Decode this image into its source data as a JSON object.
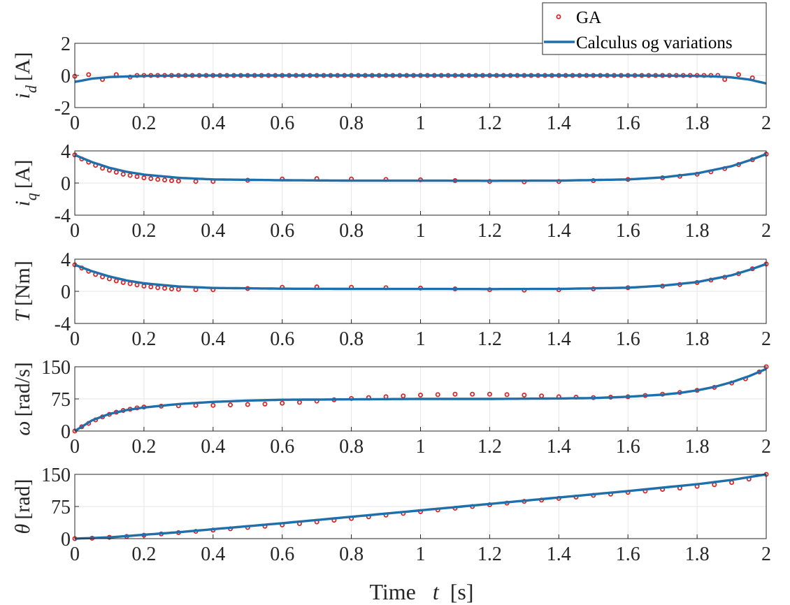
{
  "chart_data": [
    {
      "type": "line",
      "ylabel_sym": "i",
      "ylabel_sub": "d",
      "ylabel_unit": "[A]",
      "ylim": [
        -2,
        2
      ],
      "yticks": [
        -2,
        0,
        2
      ],
      "ytick_labels": [
        "-2",
        "0",
        "2"
      ],
      "xlim": [
        0,
        2
      ],
      "xticks": [
        0,
        0.2,
        0.4,
        0.6,
        0.8,
        1,
        1.2,
        1.4,
        1.6,
        1.8,
        2
      ],
      "xtick_labels": [
        "0",
        "0.2",
        "0.4",
        "0.6",
        "0.8",
        "1",
        "1.2",
        "1.4",
        "1.6",
        "1.8",
        "2"
      ],
      "series": [
        {
          "name": "Calculus og variations",
          "kind": "line",
          "x": [
            0,
            0.05,
            0.1,
            0.2,
            0.3,
            0.5,
            1.0,
            1.5,
            1.7,
            1.8,
            1.85,
            1.9,
            1.95,
            2.0
          ],
          "y": [
            -0.4,
            -0.2,
            -0.1,
            -0.03,
            -0.01,
            0,
            0,
            0,
            -0.01,
            -0.03,
            -0.06,
            -0.12,
            -0.25,
            -0.5
          ]
        },
        {
          "name": "GA",
          "kind": "markers",
          "x": [
            0,
            0.04,
            0.08,
            0.12,
            0.16,
            1.88,
            1.92,
            1.96
          ],
          "y": [
            -0.05,
            0.05,
            -0.25,
            0.05,
            -0.1,
            -0.25,
            0.05,
            -0.15
          ],
          "fill_y": 0,
          "fill_step": 0.02
        }
      ]
    },
    {
      "type": "line",
      "ylabel_sym": "i",
      "ylabel_sub": "q",
      "ylabel_unit": "[A]",
      "ylim": [
        -4,
        4
      ],
      "yticks": [
        -4,
        0,
        4
      ],
      "ytick_labels": [
        "-4",
        "0",
        "4"
      ],
      "xlim": [
        0,
        2
      ],
      "xticks": [
        0,
        0.2,
        0.4,
        0.6,
        0.8,
        1,
        1.2,
        1.4,
        1.6,
        1.8,
        2
      ],
      "xtick_labels": [
        "0",
        "0.2",
        "0.4",
        "0.6",
        "0.8",
        "1",
        "1.2",
        "1.4",
        "1.6",
        "1.8",
        "2"
      ],
      "series": [
        {
          "name": "Calculus og variations",
          "kind": "line",
          "x": [
            0,
            0.05,
            0.1,
            0.15,
            0.2,
            0.3,
            0.4,
            0.6,
            0.8,
            1.0,
            1.2,
            1.4,
            1.6,
            1.7,
            1.8,
            1.9,
            1.95,
            2.0
          ],
          "y": [
            3.5,
            2.6,
            1.9,
            1.4,
            1.05,
            0.65,
            0.45,
            0.35,
            0.3,
            0.3,
            0.28,
            0.3,
            0.45,
            0.7,
            1.2,
            2.1,
            2.8,
            3.6
          ]
        },
        {
          "name": "GA",
          "kind": "markers",
          "x": [
            0,
            0.02,
            0.04,
            0.06,
            0.08,
            0.1,
            0.12,
            0.14,
            0.16,
            0.18,
            0.2,
            0.22,
            0.24,
            0.26,
            0.28,
            0.3,
            0.35,
            0.4,
            0.5,
            0.6,
            0.7,
            0.8,
            0.9,
            1.0,
            1.1,
            1.2,
            1.3,
            1.4,
            1.5,
            1.6,
            1.7,
            1.75,
            1.8,
            1.84,
            1.88,
            1.92,
            1.96,
            2.0
          ],
          "y": [
            3.5,
            3.0,
            2.6,
            2.2,
            1.85,
            1.6,
            1.35,
            1.1,
            0.95,
            0.8,
            0.65,
            0.55,
            0.45,
            0.38,
            0.3,
            0.25,
            0.2,
            0.2,
            0.35,
            0.5,
            0.55,
            0.5,
            0.45,
            0.4,
            0.3,
            0.2,
            0.15,
            0.2,
            0.3,
            0.45,
            0.65,
            0.85,
            1.1,
            1.4,
            1.8,
            2.3,
            2.9,
            3.6
          ]
        }
      ]
    },
    {
      "type": "line",
      "ylabel_sym": "T",
      "ylabel_sub": "",
      "ylabel_unit": "[Nm]",
      "ylim": [
        -4,
        4
      ],
      "yticks": [
        -4,
        0,
        4
      ],
      "ytick_labels": [
        "-4",
        "0",
        "4"
      ],
      "xlim": [
        0,
        2
      ],
      "xticks": [
        0,
        0.2,
        0.4,
        0.6,
        0.8,
        1,
        1.2,
        1.4,
        1.6,
        1.8,
        2
      ],
      "xtick_labels": [
        "0",
        "0.2",
        "0.4",
        "0.6",
        "0.8",
        "1",
        "1.2",
        "1.4",
        "1.6",
        "1.8",
        "2"
      ],
      "series": [
        {
          "name": "Calculus og variations",
          "kind": "line",
          "x": [
            0,
            0.05,
            0.1,
            0.15,
            0.2,
            0.3,
            0.4,
            0.6,
            0.8,
            1.0,
            1.2,
            1.4,
            1.6,
            1.7,
            1.8,
            1.9,
            1.95,
            2.0
          ],
          "y": [
            3.3,
            2.5,
            1.85,
            1.35,
            1.0,
            0.6,
            0.42,
            0.33,
            0.3,
            0.3,
            0.28,
            0.3,
            0.45,
            0.7,
            1.15,
            2.0,
            2.65,
            3.4
          ]
        },
        {
          "name": "GA",
          "kind": "markers",
          "x": [
            0,
            0.02,
            0.04,
            0.06,
            0.08,
            0.1,
            0.12,
            0.14,
            0.16,
            0.18,
            0.2,
            0.22,
            0.24,
            0.26,
            0.28,
            0.3,
            0.35,
            0.4,
            0.5,
            0.6,
            0.7,
            0.8,
            0.9,
            1.0,
            1.1,
            1.2,
            1.3,
            1.4,
            1.5,
            1.6,
            1.7,
            1.75,
            1.8,
            1.84,
            1.88,
            1.92,
            1.96,
            2.0
          ],
          "y": [
            3.3,
            2.9,
            2.5,
            2.1,
            1.8,
            1.55,
            1.3,
            1.1,
            0.95,
            0.8,
            0.65,
            0.55,
            0.45,
            0.38,
            0.3,
            0.25,
            0.2,
            0.2,
            0.35,
            0.5,
            0.55,
            0.5,
            0.45,
            0.4,
            0.3,
            0.2,
            0.15,
            0.2,
            0.3,
            0.45,
            0.65,
            0.85,
            1.1,
            1.4,
            1.75,
            2.2,
            2.8,
            3.4
          ]
        }
      ]
    },
    {
      "type": "line",
      "ylabel_sym": "ω",
      "ylabel_sub": "",
      "ylabel_unit": "[rad/s]",
      "ylim": [
        0,
        150
      ],
      "yticks": [
        0,
        75,
        150
      ],
      "ytick_labels": [
        "0",
        "75",
        "150"
      ],
      "xlim": [
        0,
        2
      ],
      "xticks": [
        0,
        0.2,
        0.4,
        0.6,
        0.8,
        1,
        1.2,
        1.4,
        1.6,
        1.8,
        2
      ],
      "xtick_labels": [
        "0",
        "0.2",
        "0.4",
        "0.6",
        "0.8",
        "1",
        "1.2",
        "1.4",
        "1.6",
        "1.8",
        "2"
      ],
      "series": [
        {
          "name": "Calculus og variations",
          "kind": "line",
          "x": [
            0,
            0.05,
            0.1,
            0.15,
            0.2,
            0.3,
            0.4,
            0.5,
            0.6,
            0.8,
            1.0,
            1.2,
            1.4,
            1.5,
            1.6,
            1.7,
            1.75,
            1.8,
            1.85,
            1.9,
            1.95,
            2.0
          ],
          "y": [
            0,
            25,
            40,
            49,
            55,
            63,
            68,
            71,
            73,
            74,
            75,
            75,
            76,
            77,
            80,
            85,
            89,
            95,
            103,
            114,
            128,
            145
          ]
        },
        {
          "name": "GA",
          "kind": "markers",
          "x": [
            0,
            0.02,
            0.04,
            0.06,
            0.08,
            0.1,
            0.12,
            0.14,
            0.16,
            0.18,
            0.2,
            0.25,
            0.3,
            0.35,
            0.4,
            0.45,
            0.5,
            0.55,
            0.6,
            0.65,
            0.7,
            0.75,
            0.8,
            0.85,
            0.9,
            0.95,
            1.0,
            1.05,
            1.1,
            1.15,
            1.2,
            1.25,
            1.3,
            1.35,
            1.4,
            1.45,
            1.5,
            1.55,
            1.6,
            1.65,
            1.7,
            1.75,
            1.8,
            1.85,
            1.9,
            1.94,
            1.98,
            2.0
          ],
          "y": [
            0,
            10,
            18,
            26,
            33,
            39,
            44,
            48,
            51,
            54,
            56,
            58,
            59,
            60,
            60,
            61,
            62,
            63,
            65,
            67,
            70,
            73,
            76,
            78,
            80,
            82,
            84,
            85,
            86,
            86,
            86,
            85,
            84,
            82,
            80,
            79,
            78,
            79,
            80,
            83,
            86,
            90,
            95,
            102,
            112,
            122,
            138,
            150
          ]
        }
      ]
    },
    {
      "type": "line",
      "ylabel_sym": "θ",
      "ylabel_sub": "",
      "ylabel_unit": "[rad]",
      "ylim": [
        0,
        150
      ],
      "yticks": [
        0,
        75,
        150
      ],
      "ytick_labels": [
        "0",
        "75",
        "150"
      ],
      "xlim": [
        0,
        2
      ],
      "xticks": [
        0,
        0.2,
        0.4,
        0.6,
        0.8,
        1,
        1.2,
        1.4,
        1.6,
        1.8,
        2
      ],
      "xtick_labels": [
        "0",
        "0.2",
        "0.4",
        "0.6",
        "0.8",
        "1",
        "1.2",
        "1.4",
        "1.6",
        "1.8",
        "2"
      ],
      "series": [
        {
          "name": "Calculus og variations",
          "kind": "line",
          "x": [
            0,
            0.1,
            0.2,
            0.3,
            0.4,
            0.6,
            0.8,
            1.0,
            1.2,
            1.4,
            1.6,
            1.8,
            1.9,
            2.0
          ],
          "y": [
            0,
            3,
            9,
            15,
            22,
            36,
            51,
            66,
            81,
            96,
            111,
            127,
            137,
            150
          ]
        },
        {
          "name": "GA",
          "kind": "markers",
          "x": [
            0,
            0.05,
            0.1,
            0.15,
            0.2,
            0.25,
            0.3,
            0.35,
            0.4,
            0.45,
            0.5,
            0.55,
            0.6,
            0.65,
            0.7,
            0.75,
            0.8,
            0.85,
            0.9,
            0.95,
            1.0,
            1.05,
            1.1,
            1.15,
            1.2,
            1.25,
            1.3,
            1.35,
            1.4,
            1.45,
            1.5,
            1.55,
            1.6,
            1.65,
            1.7,
            1.75,
            1.8,
            1.85,
            1.9,
            1.95,
            2.0
          ],
          "y": [
            0,
            1,
            3,
            5,
            8,
            11,
            14,
            17,
            20,
            23,
            26,
            29,
            32,
            35,
            39,
            43,
            47,
            51,
            55,
            59,
            63,
            67,
            71,
            75,
            79,
            83,
            87,
            90,
            94,
            97,
            101,
            104,
            108,
            111,
            115,
            118,
            122,
            126,
            131,
            139,
            150
          ]
        }
      ]
    }
  ],
  "xlabel_text": "Time",
  "xlabel_var": "t",
  "xlabel_unit": "[s]",
  "legend": {
    "entries": [
      {
        "label": "GA",
        "kind": "markers"
      },
      {
        "label": "Calculus og variations",
        "kind": "line"
      }
    ],
    "placement": "top-right"
  },
  "colors": {
    "line": "#1f6fab",
    "marker": "#d62728",
    "grid": "#e6e6e6",
    "axis": "#262626"
  }
}
